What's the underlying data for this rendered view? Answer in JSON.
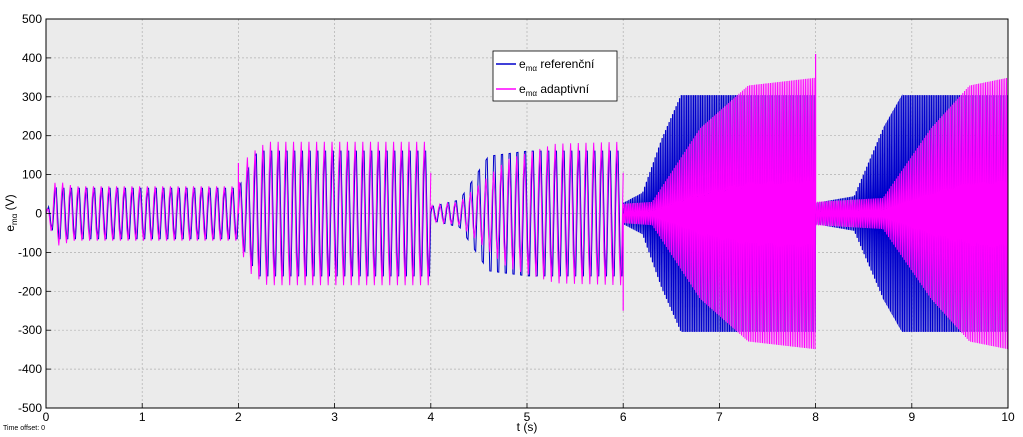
{
  "chart_data": {
    "type": "line",
    "xlabel": "t (s)",
    "ylabel": {
      "base": "e",
      "sub": "mα",
      "unit": "(V)"
    },
    "xlim": [
      0,
      10
    ],
    "ylim": [
      -500,
      500
    ],
    "xticks": [
      0,
      1,
      2,
      3,
      4,
      5,
      6,
      7,
      8,
      9,
      10
    ],
    "yticks": [
      -500,
      -400,
      -300,
      -200,
      -100,
      0,
      100,
      200,
      300,
      400,
      500
    ],
    "grid": true,
    "legend_position": "top-center",
    "colors": {
      "referencni": "#0000cc",
      "adaptivni": "#ff00ff",
      "plot_bg": "#ebebeb"
    },
    "series": [
      {
        "name": "e_mα referenční",
        "legend_base": "e",
        "legend_sub": "mα",
        "legend_text": " referenční",
        "color": "#0000cc",
        "segments": [
          {
            "t": [
              0,
              2
            ],
            "envelope": [
              [
                0,
                0
              ],
              [
                0.1,
                75
              ],
              [
                2,
                75
              ]
            ]
          },
          {
            "t": [
              2,
              4
            ],
            "envelope": [
              [
                2,
                75
              ],
              [
                2.2,
                185
              ],
              [
                4,
                185
              ]
            ]
          },
          {
            "t": [
              4,
              6
            ],
            "envelope": [
              [
                4,
                20
              ],
              [
                4.3,
                40
              ],
              [
                4.6,
                170
              ],
              [
                5,
                185
              ],
              [
                6,
                185
              ]
            ]
          },
          {
            "t": [
              6,
              8
            ],
            "envelope": [
              [
                6,
                30
              ],
              [
                6.2,
                60
              ],
              [
                6.4,
                220
              ],
              [
                6.6,
                350
              ],
              [
                8,
                350
              ]
            ]
          },
          {
            "t": [
              8,
              10
            ],
            "envelope": [
              [
                8,
                30
              ],
              [
                8.4,
                50
              ],
              [
                8.7,
                250
              ],
              [
                8.9,
                350
              ],
              [
                10,
                350
              ]
            ]
          }
        ]
      },
      {
        "name": "e_mα adaptivní",
        "legend_base": "e",
        "legend_sub": "mα",
        "legend_text": " adaptivní",
        "color": "#ff00ff",
        "segments": [
          {
            "t": [
              0,
              2
            ],
            "envelope": [
              [
                0,
                0
              ],
              [
                0.1,
                85
              ],
              [
                0.3,
                70
              ],
              [
                2,
                70
              ]
            ]
          },
          {
            "t": [
              2,
              4
            ],
            "envelope": [
              [
                2,
                70
              ],
              [
                2.1,
                150
              ],
              [
                2.3,
                185
              ],
              [
                4,
                185
              ]
            ]
          },
          {
            "t": [
              4,
              6
            ],
            "envelope": [
              [
                4,
                20
              ],
              [
                4.3,
                30
              ],
              [
                4.8,
                140
              ],
              [
                5.3,
                180
              ],
              [
                6,
                185
              ]
            ]
          },
          {
            "t": [
              6,
              8
            ],
            "envelope": [
              [
                6,
                25
              ],
              [
                6.3,
                30
              ],
              [
                6.8,
                220
              ],
              [
                7.3,
                330
              ],
              [
                8,
                350
              ]
            ]
          },
          {
            "t": [
              8,
              10
            ],
            "envelope": [
              [
                8,
                30
              ],
              [
                8.7,
                40
              ],
              [
                9.2,
                220
              ],
              [
                9.6,
                330
              ],
              [
                10,
                350
              ]
            ]
          }
        ]
      }
    ],
    "spikes": [
      {
        "t": 2.0,
        "value": 130
      },
      {
        "t": 6.0,
        "value": -250
      },
      {
        "t": 8.0,
        "value": 410
      }
    ]
  },
  "footer": {
    "time_offset": "Time offset:  0"
  }
}
